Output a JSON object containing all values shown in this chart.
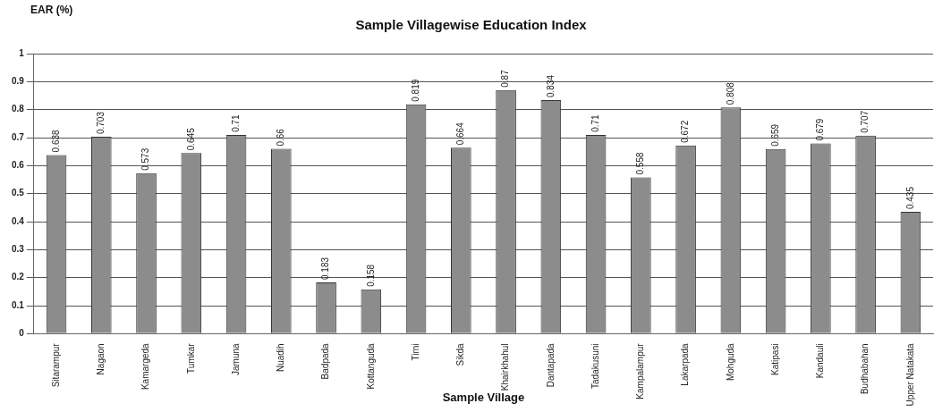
{
  "chart_data": {
    "type": "bar",
    "title": "Sample Villagewise Education Index",
    "xlabel": "Sample Village",
    "ylabel": "EAR (%)",
    "categories": [
      "Sitarampur",
      "Nagaon",
      "Kamargeda",
      "Tumkar",
      "Jamuna",
      "Nuadih",
      "Badpada",
      "Kottanguda",
      "Tirni",
      "Sikda",
      "Khairkhahul",
      "Dantapada",
      "Tadakusuni",
      "Kampalampur",
      "Lakarpada",
      "Mohguda",
      "Katipasi",
      "Kandauli",
      "Budhabahan",
      "Upper Natakata"
    ],
    "values": [
      0.638,
      0.703,
      0.573,
      0.645,
      0.71,
      0.66,
      0.183,
      0.158,
      0.819,
      0.664,
      0.87,
      0.834,
      0.71,
      0.558,
      0.672,
      0.808,
      0.659,
      0.679,
      0.707,
      0.435
    ],
    "color": "#8c8c8c",
    "ylim": [
      0,
      1
    ],
    "yticks": [
      0,
      0.1,
      0.2,
      0.3,
      0.4,
      0.5,
      0.6,
      0.7,
      0.8,
      0.9,
      1
    ],
    "grid": "y",
    "data_labels": true
  }
}
